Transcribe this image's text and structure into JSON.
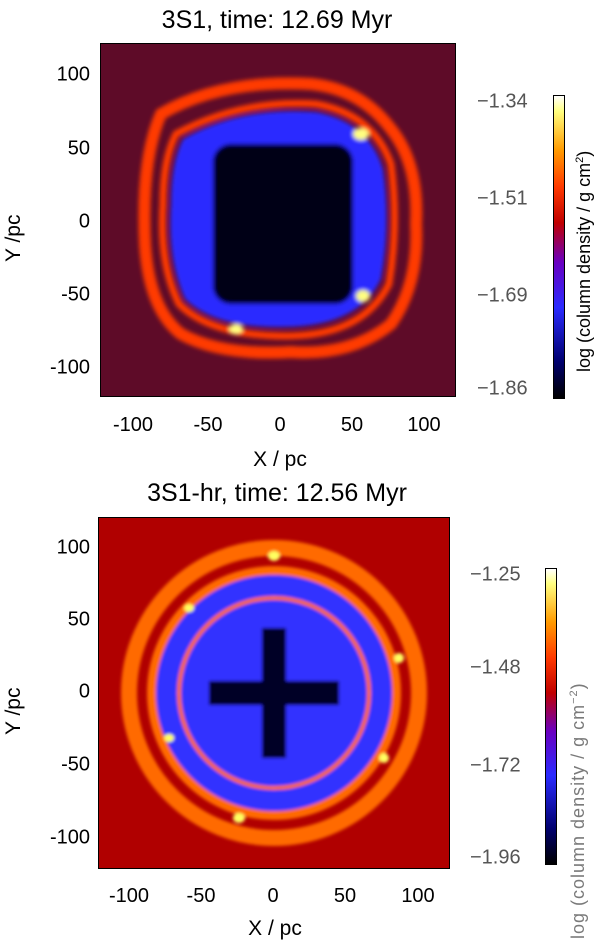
{
  "chart_data": [
    {
      "type": "heatmap",
      "title": "3S1, time: 12.69 Myr",
      "xlabel": "X / pc",
      "ylabel": "Y /pc",
      "xlim": [
        -120,
        120
      ],
      "ylim": [
        -120,
        120
      ],
      "xticks": [
        "-100",
        "-50",
        "0",
        "50",
        "100"
      ],
      "xtick_values": [
        -100,
        -50,
        0,
        50,
        100
      ],
      "yticks": [
        "100",
        "50",
        "0",
        "-50",
        "-100"
      ],
      "ytick_values": [
        100,
        50,
        0,
        -50,
        -100
      ],
      "colorbar": {
        "label": "log (column density / g cm",
        "label_sup": "2",
        "label_tail": ")",
        "ticks": [
          "−1.34",
          "−1.51",
          "−1.69",
          "−1.86"
        ],
        "tick_values": [
          -1.34,
          -1.51,
          -1.69,
          -1.86
        ],
        "range": [
          -1.86,
          -1.34
        ]
      },
      "colors": {
        "background": "#5e0b28",
        "inner": "#000014",
        "shell": "#2b2bff",
        "rim": "#ff3a00",
        "hot": "#ffff80"
      }
    },
    {
      "type": "heatmap",
      "title": "3S1-hr, time: 12.56 Myr",
      "xlabel": "X / pc",
      "ylabel": "Y /pc",
      "xlim": [
        -120,
        120
      ],
      "ylim": [
        -120,
        120
      ],
      "xticks": [
        "-100",
        "-50",
        "0",
        "50",
        "100"
      ],
      "xtick_values": [
        -100,
        -50,
        0,
        50,
        100
      ],
      "yticks": [
        "100",
        "50",
        "0",
        "-50",
        "-100"
      ],
      "ytick_values": [
        100,
        50,
        0,
        -50,
        -100
      ],
      "colorbar": {
        "label": "log (column density / g cm",
        "label_sup": "−2",
        "label_tail": ")",
        "ticks": [
          "−1.25",
          "−1.48",
          "−1.72",
          "−1.96"
        ],
        "tick_values": [
          -1.25,
          -1.48,
          -1.72,
          -1.96
        ],
        "range": [
          -1.96,
          -1.25
        ]
      },
      "colors": {
        "background": "#b00000",
        "inner": "#000028",
        "shell": "#3030ff",
        "rim": "#ff6a00",
        "hot": "#ffff60"
      }
    }
  ]
}
